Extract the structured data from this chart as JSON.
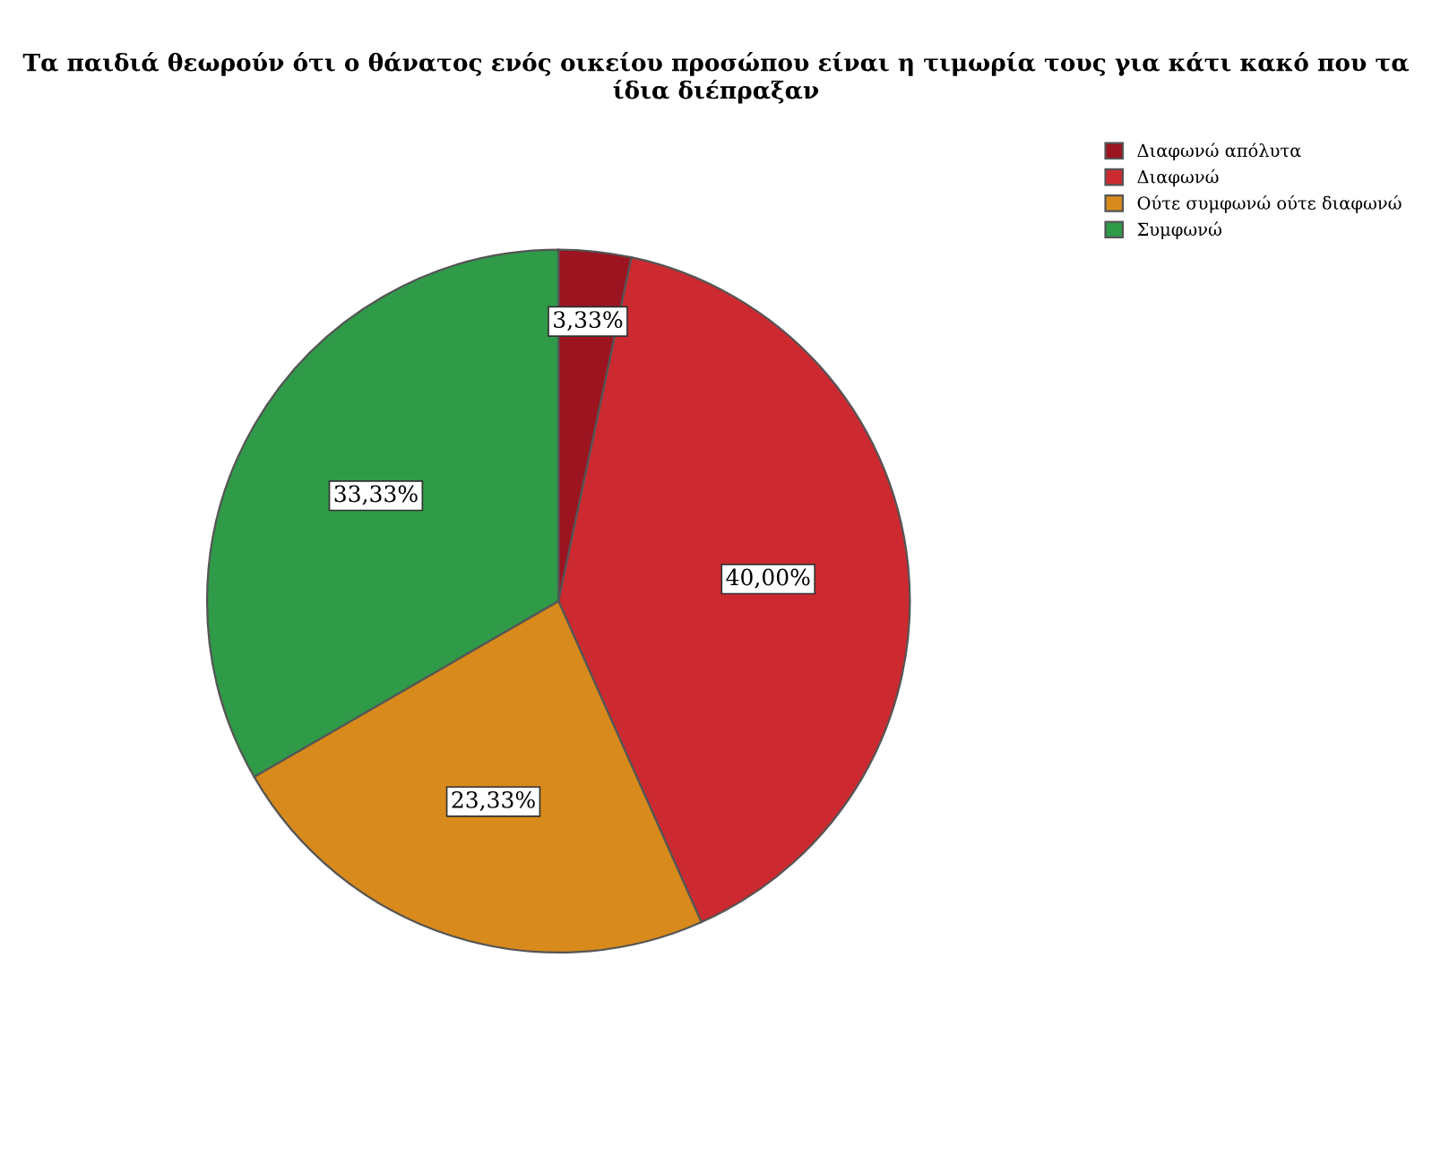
{
  "chart_data": {
    "type": "pie",
    "title": "Τα παιδιά θεωρούν ότι ο θάνατος ενός οικείου προσώπου είναι η τιμωρία τους για κάτι κακό που τα ίδια διέπραξαν",
    "categories": [
      "Διαφωνώ απόλυτα",
      "Διαφωνώ",
      "Ούτε συμφωνώ ούτε διαφωνώ",
      "Συμφωνώ"
    ],
    "values": [
      3.33,
      40.0,
      23.33,
      33.33
    ],
    "colors": [
      "#9b1420",
      "#cc2a30",
      "#d88a1c",
      "#2f9a48"
    ],
    "value_labels": [
      "3,33%",
      "40,00%",
      "23,33%",
      "33,33%"
    ],
    "legend": "top right"
  }
}
